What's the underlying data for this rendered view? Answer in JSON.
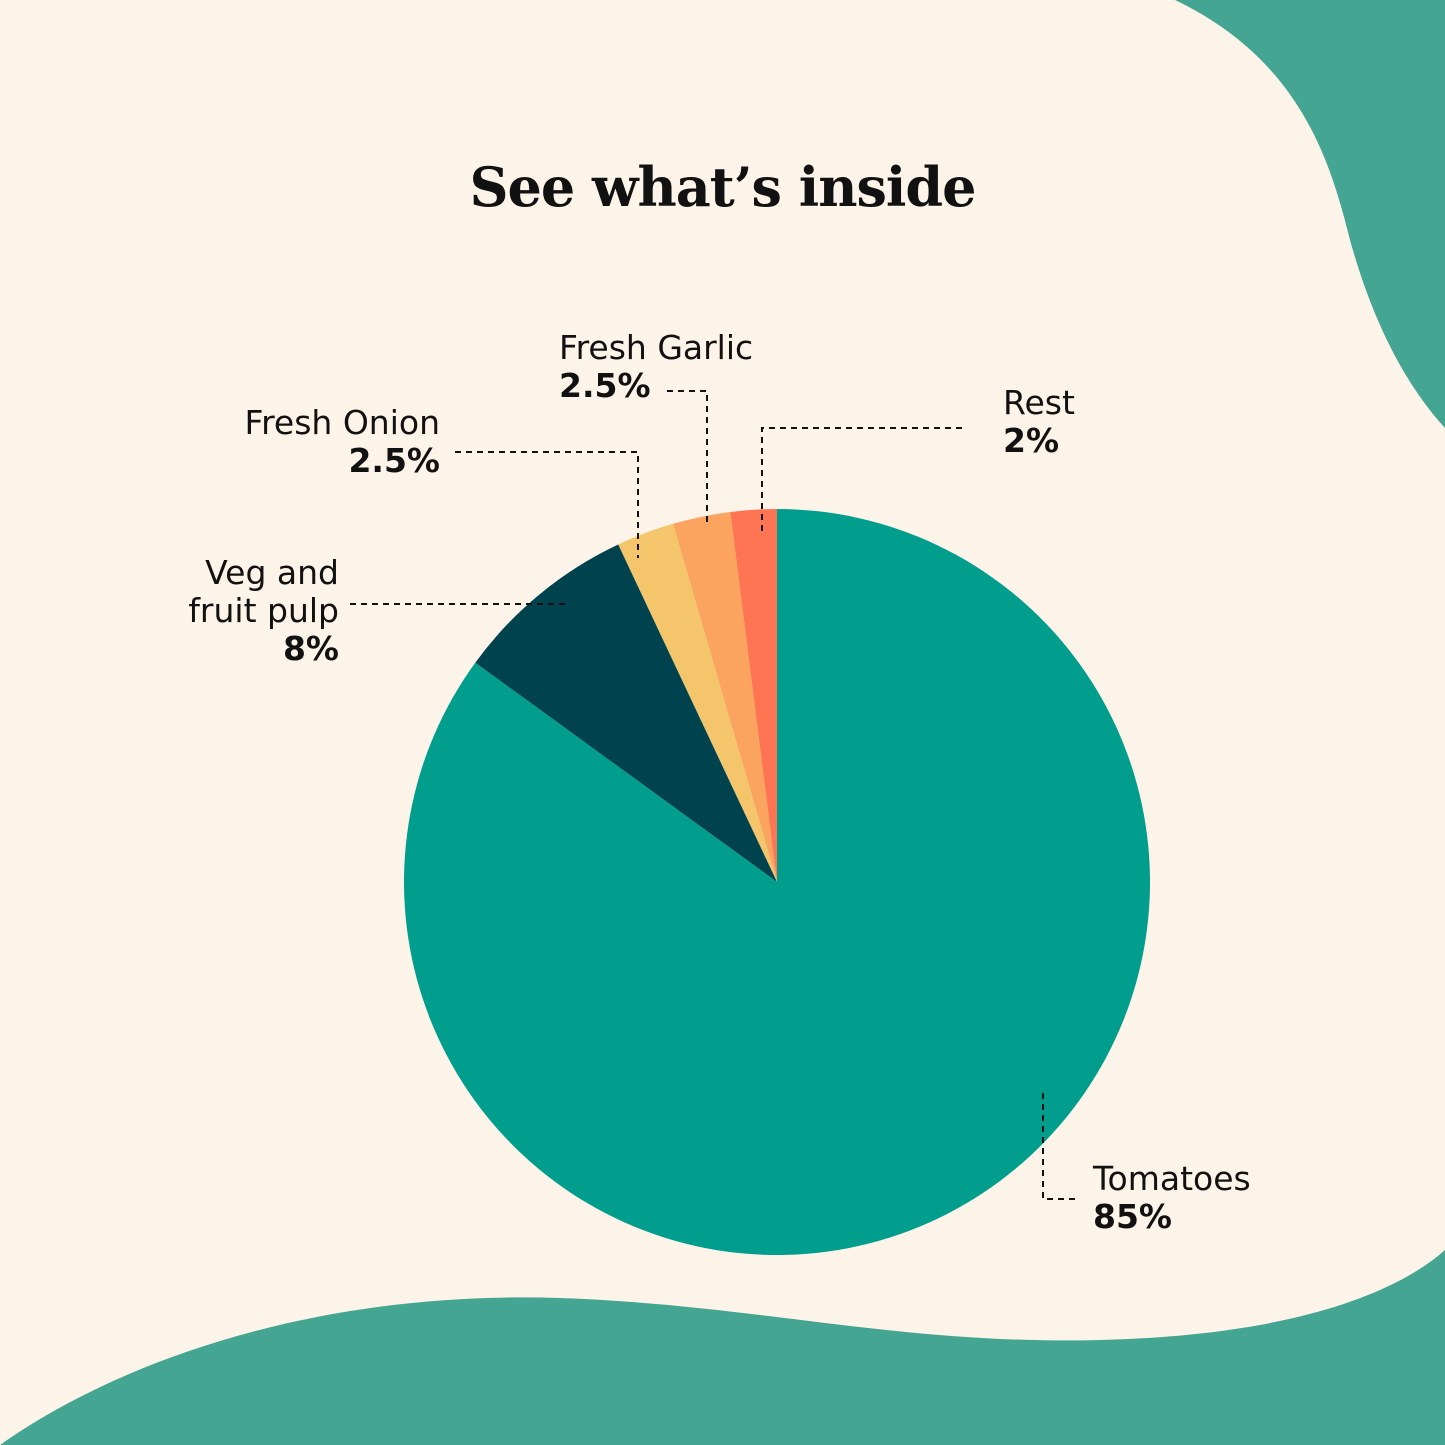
{
  "chart_data": {
    "type": "pie",
    "title": "See what’s inside",
    "start": "top",
    "direction": "counterclockwise",
    "slices": [
      {
        "label": "Rest",
        "value": 2,
        "value_label": "2%",
        "color": "#FF7452"
      },
      {
        "label": "Fresh Garlic",
        "value": 2.5,
        "value_label": "2.5%",
        "color": "#FBA45F"
      },
      {
        "label": "Fresh Onion",
        "value": 2.5,
        "value_label": "2.5%",
        "color": "#F4C56A"
      },
      {
        "label": "Veg and fruit pulp",
        "value": 8,
        "value_label": "8%",
        "color": "#00434F"
      },
      {
        "label": "Tomatoes",
        "value": 85,
        "value_label": "85%",
        "color": "#029E8D"
      }
    ]
  },
  "colors": {
    "background": "#FDF4E9",
    "accent": "#45A593"
  }
}
